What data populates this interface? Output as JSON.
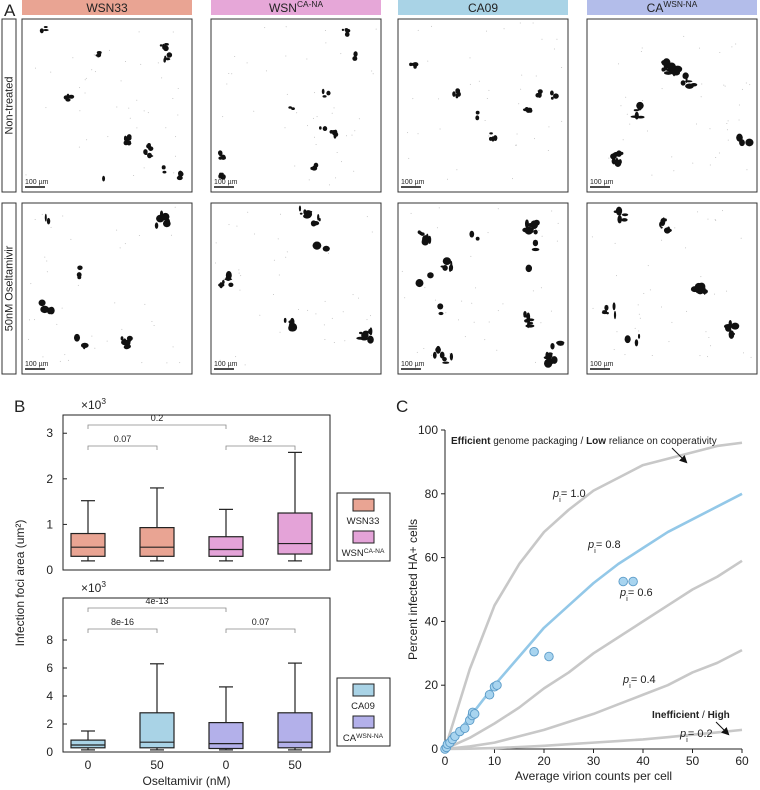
{
  "panel_labels": {
    "a": "A",
    "b": "B",
    "c": "C"
  },
  "panel_a": {
    "columns": [
      {
        "text": "WSN33",
        "color": "#e9a493"
      },
      {
        "text": "WSN",
        "sup": "CA-NA",
        "color": "#e6a7d8"
      },
      {
        "text": "CA09",
        "color": "#a9d3e6"
      },
      {
        "text": "CA",
        "sup": "WSN-NA",
        "color": "#b3bdea"
      }
    ],
    "rows": [
      "Non-treated",
      "50nM Oseltamivir"
    ],
    "scale_bar": "100 µm"
  },
  "chart_data": [
    {
      "type": "box",
      "multiplier": {
        "text": "×10",
        "sup": "3"
      },
      "y_label": "Infection foci area (um²)",
      "ylim": [
        0,
        3.4
      ],
      "yticks": [
        0,
        1,
        2,
        3
      ],
      "series": [
        {
          "name": "WSN33",
          "color": "#e9a493",
          "values": [
            {
              "low": 0.2,
              "q1": 0.3,
              "median": 0.5,
              "q3": 0.8,
              "high": 1.52
            },
            {
              "low": 0.2,
              "q1": 0.3,
              "median": 0.5,
              "q3": 0.93,
              "high": 1.8
            },
            null,
            null
          ]
        },
        {
          "name": "WSN",
          "name_sup": "CA-NA",
          "color": "#e4a3d8",
          "values": [
            null,
            null,
            {
              "low": 0.2,
              "q1": 0.3,
              "median": 0.45,
              "q3": 0.73,
              "high": 1.33
            },
            {
              "low": 0.2,
              "q1": 0.35,
              "median": 0.58,
              "q3": 1.25,
              "high": 2.58
            }
          ]
        }
      ],
      "annotations": [
        "0.07",
        "8e-12",
        "0.2"
      ]
    },
    {
      "type": "box",
      "multiplier": {
        "text": "×10",
        "sup": "3"
      },
      "x_label": "Oseltamivir (nM)",
      "categories": [
        "0",
        "50",
        "0",
        "50"
      ],
      "ylim": [
        0,
        11
      ],
      "yticks": [
        0,
        2,
        4,
        6,
        8
      ],
      "series": [
        {
          "name": "CA09",
          "color": "#a9d3e6",
          "values": [
            {
              "low": 0.15,
              "q1": 0.3,
              "median": 0.5,
              "q3": 0.85,
              "high": 1.5
            },
            {
              "low": 0.15,
              "q1": 0.3,
              "median": 0.7,
              "q3": 2.8,
              "high": 6.3
            },
            null,
            null
          ]
        },
        {
          "name": "CA",
          "name_sup": "WSN-NA",
          "color": "#b3b0ea",
          "values": [
            null,
            null,
            {
              "low": 0.15,
              "q1": 0.25,
              "median": 0.6,
              "q3": 2.1,
              "high": 4.65
            },
            {
              "low": 0.15,
              "q1": 0.3,
              "median": 0.7,
              "q3": 2.8,
              "high": 6.35
            }
          ]
        }
      ],
      "annotations": [
        "8e-16",
        "0.07",
        "4e-13"
      ]
    },
    {
      "type": "line",
      "x_label": "Average virion counts per cell",
      "y_label": "Percent infected HA+ cells",
      "xlim": [
        0,
        60
      ],
      "ylim": [
        0,
        100
      ],
      "xticks": [
        0,
        10,
        20,
        30,
        40,
        50,
        60
      ],
      "yticks": [
        0,
        20,
        40,
        60,
        80,
        100
      ],
      "x": [
        0,
        5,
        10,
        15,
        20,
        25,
        30,
        35,
        40,
        45,
        50,
        55,
        60
      ],
      "series": [
        {
          "label": {
            "text": "p",
            "sub": "i",
            "suffix": "= 1.0"
          },
          "color": "#c8c8c8",
          "values": [
            0,
            25,
            45,
            58,
            68,
            75,
            81,
            85,
            89,
            91,
            93,
            95,
            96
          ]
        },
        {
          "label": {
            "text": "p",
            "sub": "i",
            "suffix": "= 0.8"
          },
          "color": "#93c8e8",
          "values": [
            0,
            10,
            20,
            29,
            38,
            45,
            52,
            58,
            63,
            68,
            72,
            76,
            80
          ]
        },
        {
          "label": {
            "text": "p",
            "sub": "i",
            "suffix": "= 0.6"
          },
          "color": "#c8c8c8",
          "values": [
            0,
            3.5,
            8,
            13,
            19,
            24,
            30,
            35,
            40,
            45,
            50,
            54,
            59
          ]
        },
        {
          "label": {
            "text": "p",
            "sub": "i",
            "suffix": "= 0.4"
          },
          "color": "#c8c8c8",
          "values": [
            0,
            0.8,
            2,
            4,
            6,
            8.5,
            11,
            14,
            17,
            20,
            24,
            27,
            31
          ]
        },
        {
          "label": {
            "text": "p",
            "sub": "i",
            "suffix": "= 0.2"
          },
          "color": "#c8c8c8",
          "values": [
            0,
            0.1,
            0.3,
            0.6,
            1,
            1.5,
            2,
            2.5,
            3,
            3.7,
            4.5,
            5.2,
            6
          ]
        }
      ],
      "points": {
        "color": "#a8d4ef",
        "x": [
          0,
          0.3,
          0.5,
          1,
          1.5,
          2,
          3,
          4,
          5,
          5.5,
          5.6,
          6,
          9,
          10,
          10.5,
          18,
          21,
          36,
          38
        ],
        "y": [
          0,
          0.5,
          1.5,
          2,
          3,
          4,
          5.5,
          6.5,
          9,
          10.5,
          11.5,
          11,
          17,
          19.5,
          20,
          30.5,
          29,
          52.5,
          52.5
        ]
      },
      "annotations": [
        [
          {
            "text": "Efficient",
            "bold": true
          },
          {
            "text": " genome packaging / "
          },
          {
            "text": "Low",
            "bold": true
          },
          {
            "text": " reliance on cooperativity"
          }
        ],
        [
          {
            "text": "Inefficient",
            "bold": true
          },
          {
            "text": " / "
          },
          {
            "text": "High",
            "bold": true
          }
        ]
      ]
    }
  ]
}
